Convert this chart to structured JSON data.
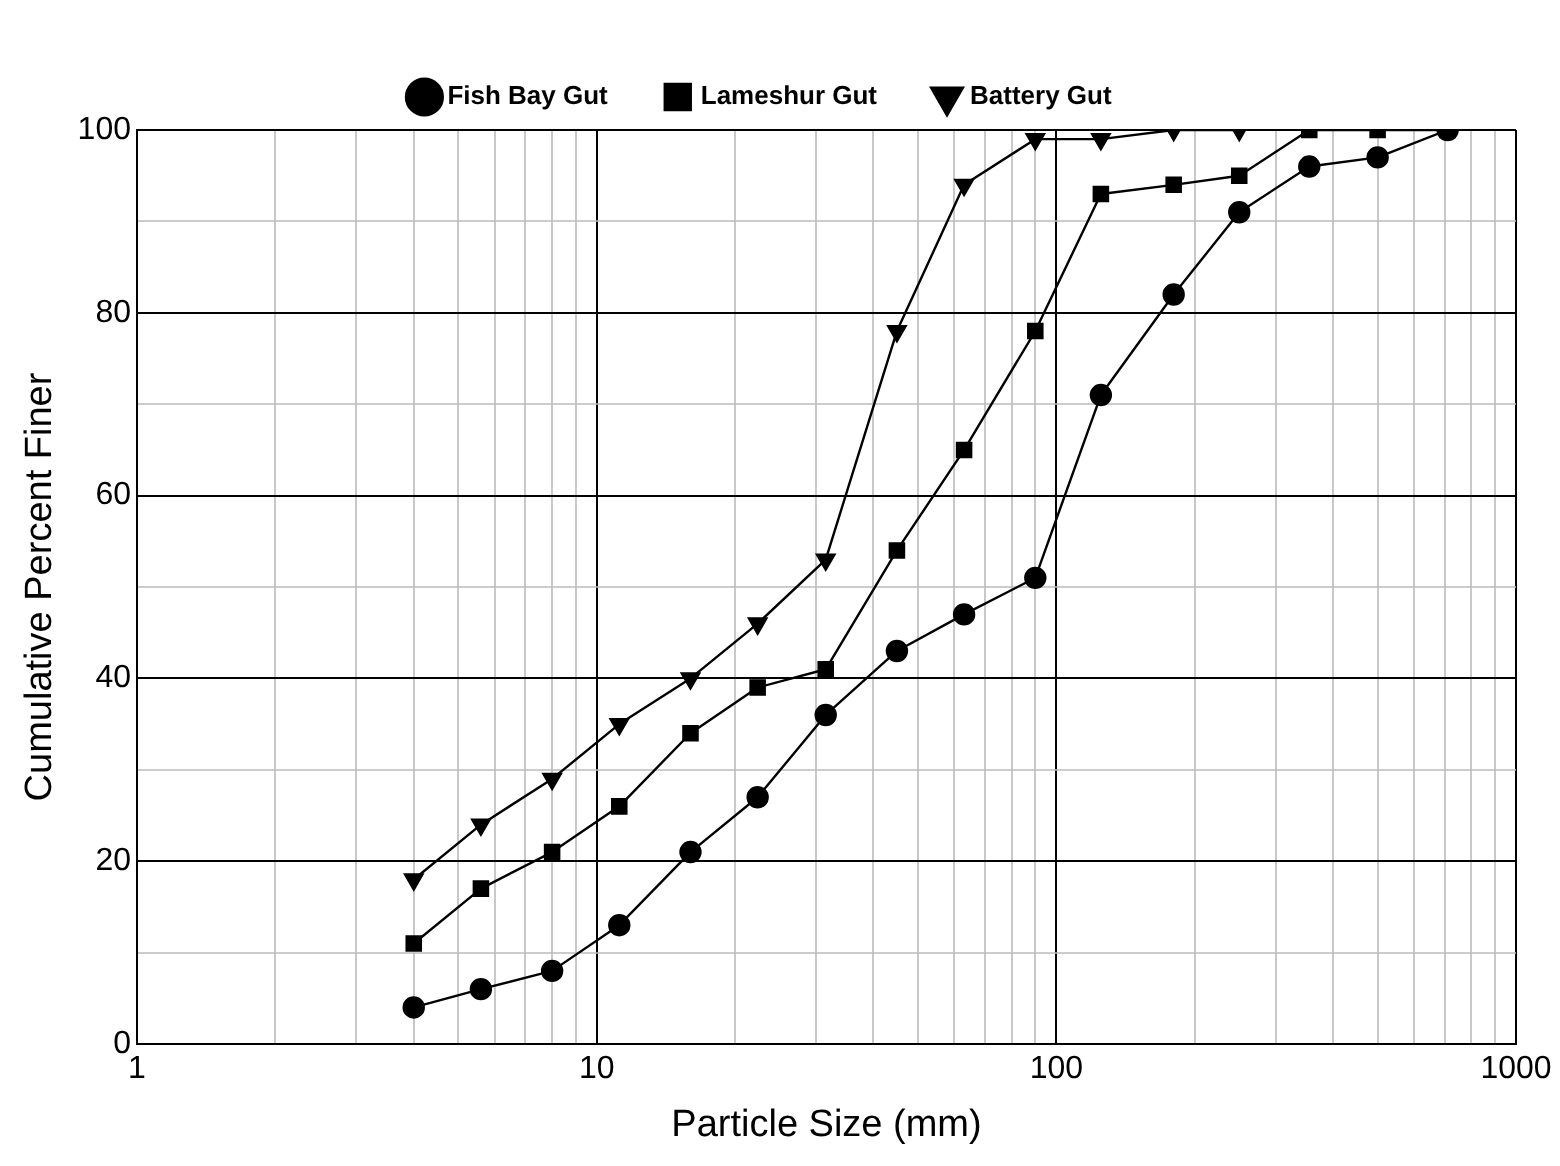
{
  "chart_data": {
    "type": "line",
    "xlabel": "Particle Size (mm)",
    "ylabel": "Cumulative Percent Finer",
    "log": "x",
    "grid": true,
    "legend": "top",
    "line_style": "solid",
    "xlim": [
      1,
      1000
    ],
    "ylim": [
      0,
      100
    ],
    "xticks": [
      1,
      {
        "value": 2,
        "label": null
      },
      {
        "value": 3,
        "label": null
      },
      {
        "value": 4,
        "label": null
      },
      {
        "value": 5,
        "label": null
      },
      {
        "value": 6,
        "label": null
      },
      {
        "value": 7,
        "label": null
      },
      {
        "value": 8,
        "label": null
      },
      {
        "value": 9,
        "label": null
      },
      10,
      {
        "value": 20,
        "label": null
      },
      {
        "value": 30,
        "label": null
      },
      {
        "value": 40,
        "label": null
      },
      {
        "value": 50,
        "label": null
      },
      {
        "value": 60,
        "label": null
      },
      {
        "value": 70,
        "label": null
      },
      {
        "value": 80,
        "label": null
      },
      {
        "value": 90,
        "label": null
      },
      100,
      {
        "value": 200,
        "label": null
      },
      {
        "value": 300,
        "label": null
      },
      {
        "value": 400,
        "label": null
      },
      {
        "value": 500,
        "label": null
      },
      {
        "value": 600,
        "label": null
      },
      {
        "value": 700,
        "label": null
      },
      {
        "value": 800,
        "label": null
      },
      {
        "value": 900,
        "label": null
      },
      1000
    ],
    "yticks": [
      0,
      {
        "value": 10,
        "label": null
      },
      20,
      {
        "value": 30,
        "label": null
      },
      40,
      {
        "value": 50,
        "label": null
      },
      60,
      {
        "value": 70,
        "label": null
      },
      80,
      {
        "value": 90,
        "label": null
      },
      100
    ],
    "series": [
      {
        "name": "Fish Bay Gut",
        "color": "#000000",
        "marker": "circle",
        "x": [
          4,
          5.6,
          8,
          11.2,
          16,
          22.4,
          31.5,
          45,
          63,
          90,
          125,
          180,
          250,
          355,
          500,
          710
        ],
        "values": [
          4,
          6,
          8,
          13,
          21,
          27,
          36,
          43,
          47,
          51,
          71,
          82,
          91,
          96,
          97,
          100
        ]
      },
      {
        "name": "Lameshur Gut",
        "color": "#000000",
        "marker": "square",
        "x": [
          4,
          5.6,
          8,
          11.2,
          16,
          22.4,
          31.5,
          45,
          63,
          90,
          125,
          180,
          250,
          355,
          500,
          710
        ],
        "values": [
          11,
          17,
          21,
          26,
          34,
          39,
          41,
          54,
          65,
          78,
          93,
          94,
          95,
          100,
          100,
          100
        ]
      },
      {
        "name": "Battery Gut",
        "color": "#000000",
        "marker": "triangle",
        "x": [
          4,
          5.6,
          8,
          11.2,
          16,
          22.4,
          31.5,
          45,
          63,
          90,
          125,
          180,
          250
        ],
        "values": [
          18,
          24,
          29,
          35,
          40,
          46,
          53,
          78,
          94,
          99,
          99,
          100,
          100
        ]
      }
    ]
  }
}
